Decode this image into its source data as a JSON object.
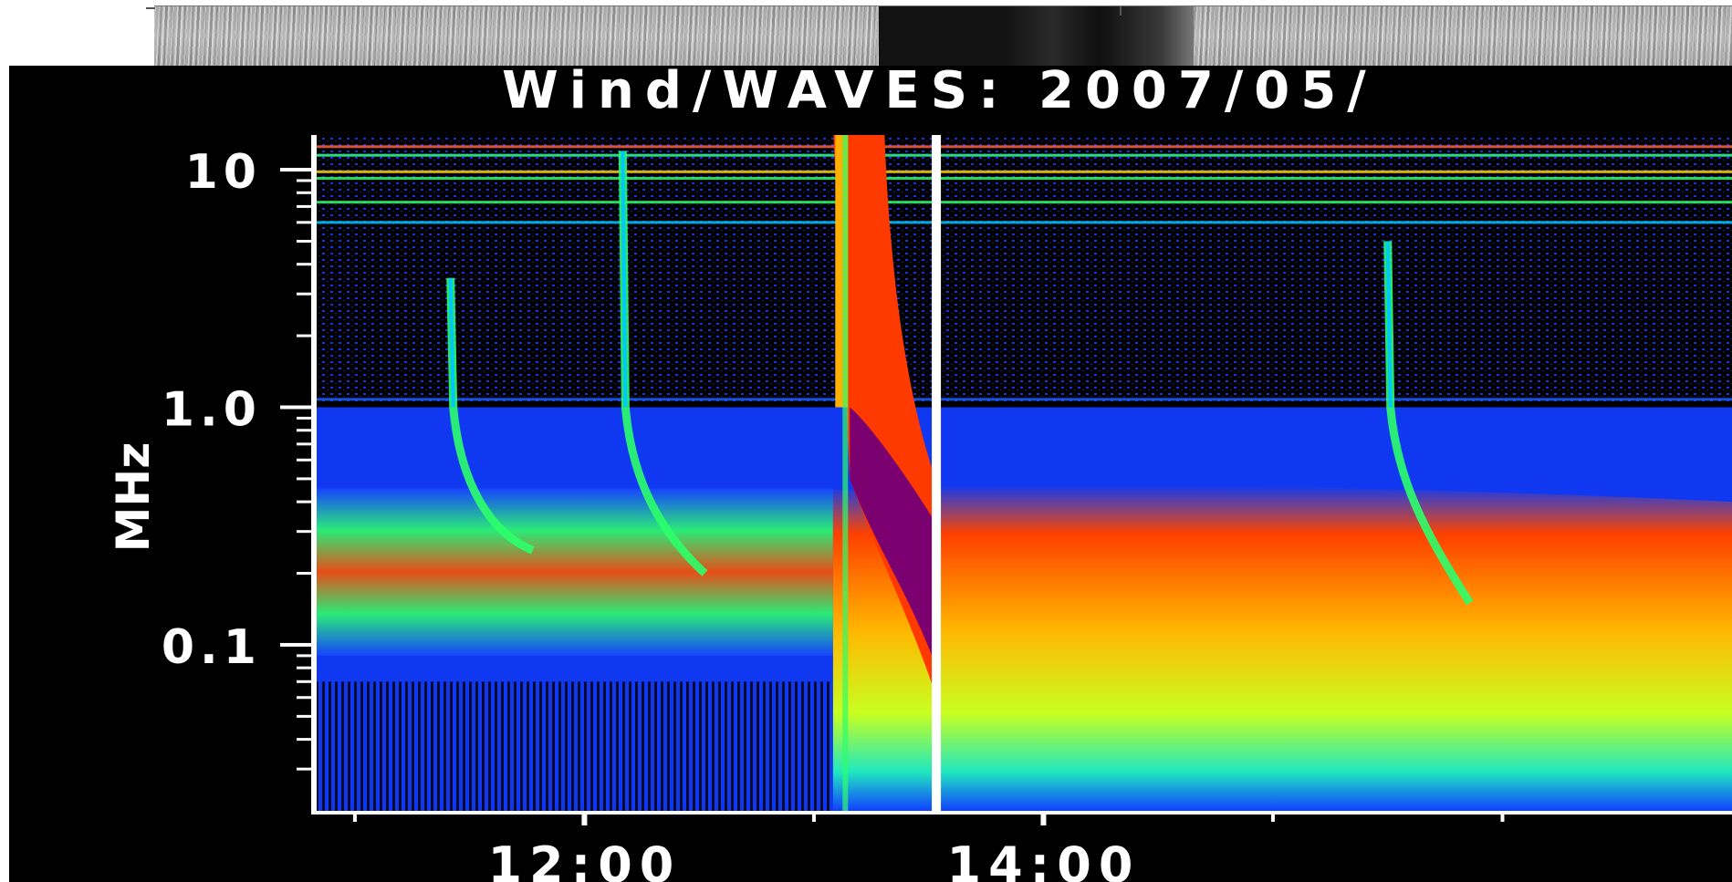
{
  "chart_data": {
    "type": "heatmap",
    "title": "Wind/WAVES: 2007/05/",
    "ylabel": "MHz",
    "xlabel": "",
    "y_scale": "log",
    "ylim": [
      0.02,
      14
    ],
    "y_ticks": [
      {
        "value": 10,
        "label": "10"
      },
      {
        "value": 1.0,
        "label": "1.0"
      },
      {
        "value": 0.1,
        "label": "0.1"
      }
    ],
    "x_ticks": [
      {
        "value": "12:00",
        "label": "12:00"
      },
      {
        "value": "14:00",
        "label": "14:00"
      }
    ],
    "xlim": [
      "10:50",
      "17:00"
    ],
    "data_gap": "13:32",
    "grid": false,
    "colormap": [
      "#000000",
      "#0a1ea8",
      "#1746ff",
      "#00c8ff",
      "#2cff6a",
      "#d8ff00",
      "#ffb000",
      "#ff3a00",
      "#d40018",
      "#7b0070"
    ],
    "bursts": [
      {
        "time": "11:25",
        "start_freq_mhz": 3.5,
        "end_freq_mhz": 0.25,
        "intensity": "moderate"
      },
      {
        "time": "12:10",
        "start_freq_mhz": 12,
        "end_freq_mhz": 0.2,
        "intensity": "moderate"
      },
      {
        "time": "13:07",
        "start_freq_mhz": 14,
        "end_freq_mhz": 0.06,
        "intensity": "saturated"
      },
      {
        "time": "15:30",
        "start_freq_mhz": 5,
        "end_freq_mhz": 0.15,
        "intensity": "moderate"
      }
    ],
    "background_band_mhz": [
      0.15,
      0.35
    ],
    "low_freq_enhancement": {
      "start": "13:05",
      "end": "17:00",
      "freq_range_mhz": [
        0.03,
        0.45
      ],
      "intensity": "strong"
    }
  }
}
